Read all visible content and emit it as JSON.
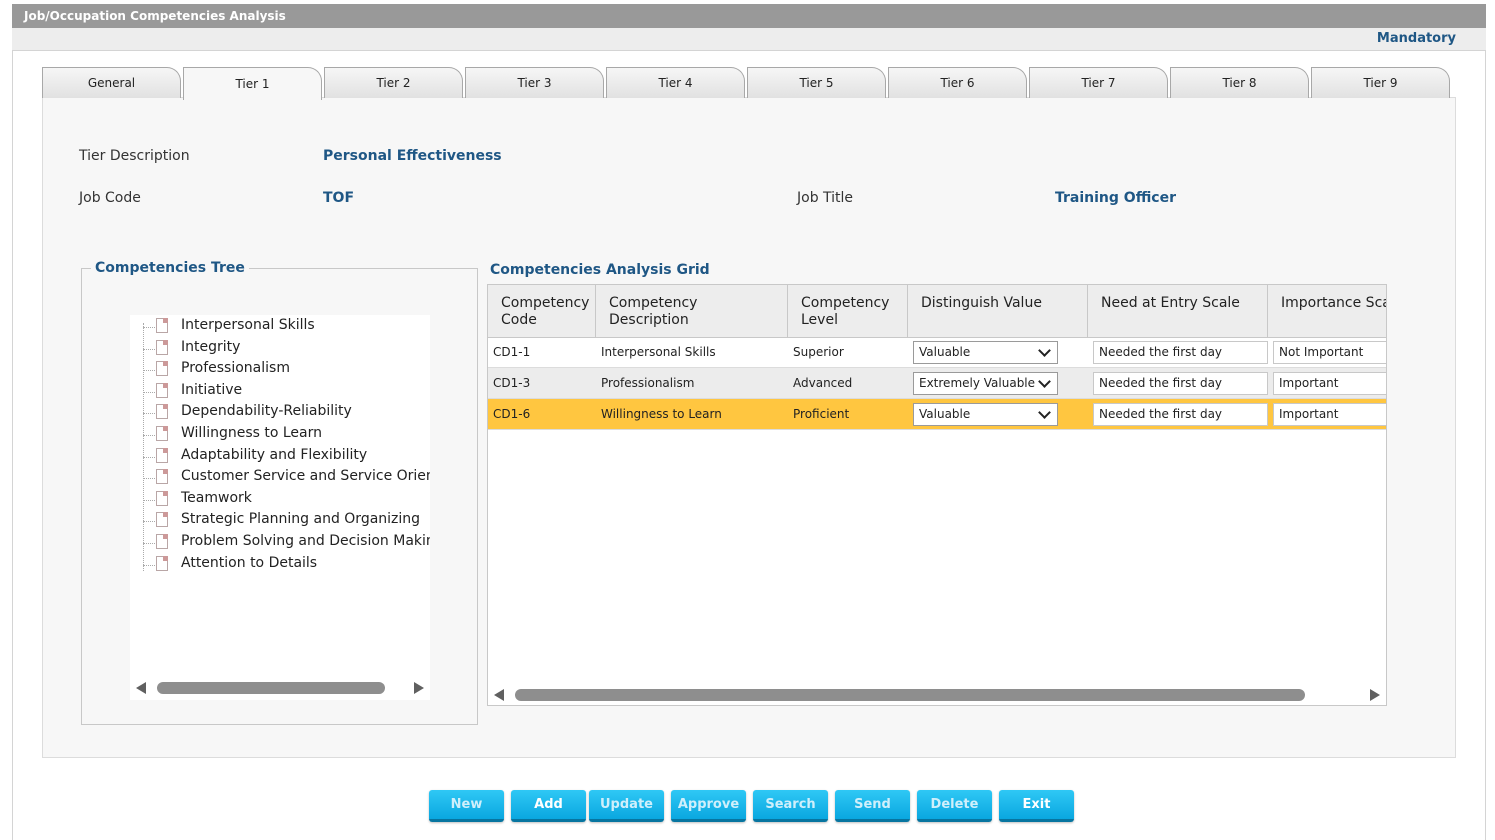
{
  "window": {
    "title": "Job/Occupation Competencies Analysis",
    "mandatory": "Mandatory"
  },
  "tabs": [
    {
      "label": "General"
    },
    {
      "label": "Tier 1"
    },
    {
      "label": "Tier 2"
    },
    {
      "label": "Tier 3"
    },
    {
      "label": "Tier 4"
    },
    {
      "label": "Tier 5"
    },
    {
      "label": "Tier 6"
    },
    {
      "label": "Tier 7"
    },
    {
      "label": "Tier 8"
    },
    {
      "label": "Tier 9"
    }
  ],
  "active_tab": "Tier 1",
  "form": {
    "tier_description_label": "Tier Description",
    "tier_description": "Personal Effectiveness",
    "job_code_label": "Job Code",
    "job_code": "TOF",
    "job_title_label": "Job Title",
    "job_title": "Training Officer"
  },
  "tree": {
    "title": "Competencies Tree",
    "items": [
      "Interpersonal Skills",
      "Integrity",
      "Professionalism",
      "Initiative",
      "Dependability-Reliability",
      "Willingness to Learn",
      "Adaptability and Flexibility",
      "Customer Service and Service Orientati",
      "Teamwork",
      "Strategic Planning and Organizing",
      "Problem Solving and Decision Making",
      "Attention to Details"
    ]
  },
  "grid": {
    "title": "Competencies Analysis Grid",
    "columns": {
      "code_line1": "Competency",
      "code_line2": "Code",
      "description": "Competency Description",
      "level_line1": "Competency",
      "level_line2": "Level",
      "distinguish": "Distinguish Value",
      "entry": "Need at Entry Scale",
      "importance": "Importance Scale"
    },
    "rows": [
      {
        "code": "CD1-1",
        "description": "Interpersonal Skills",
        "level": "Superior",
        "distinguish": "Valuable",
        "entry": "Needed the first day",
        "importance": "Not Important"
      },
      {
        "code": "CD1-3",
        "description": "Professionalism",
        "level": "Advanced",
        "distinguish": "Extremely Valuable",
        "entry": "Needed the first day",
        "importance": "Important"
      },
      {
        "code": "CD1-6",
        "description": "Willingness to Learn",
        "level": "Proficient",
        "distinguish": "Valuable",
        "entry": "Needed the first day",
        "importance": "Important"
      }
    ],
    "selected_row": 2
  },
  "buttons": {
    "new": "New",
    "add": "Add",
    "update": "Update",
    "approve": "Approve",
    "search": "Search",
    "send": "Send",
    "delete": "Delete",
    "exit": "Exit"
  },
  "colors": {
    "accent": "#1f5785",
    "selected_row": "#ffc640",
    "button": "#0aa7e0",
    "titlebar": "#999999"
  }
}
